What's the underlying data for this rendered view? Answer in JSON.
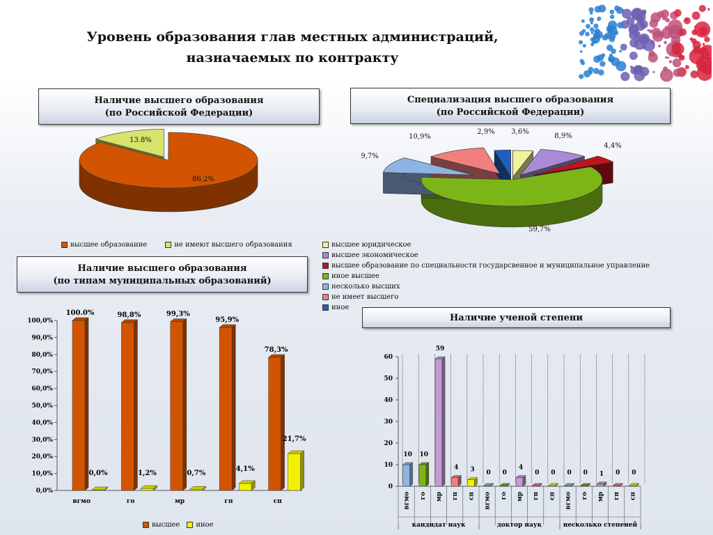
{
  "header": {
    "title_line1": "Уровень образования глав местных администраций,",
    "title_line2": "назначаемых по контракту"
  },
  "colors": {
    "orange": "#d35400",
    "yellow_green": "#d7e36a",
    "yellow": "#f2f200",
    "green": "#7cb518",
    "purple": "#a88bd6",
    "red": "#c0141b",
    "light_blue": "#8eb4e3",
    "salmon": "#f08080",
    "blue": "#1f5fbf"
  },
  "panels": {
    "higher_ed": {
      "line1": "Наличие высшего образования",
      "line2": "(по Российской Федерации)"
    },
    "specialization": {
      "line1": "Специализация высшего образования",
      "line2": "(по Российской Федерации)"
    },
    "by_type": {
      "line1": "Наличие высшего образования",
      "line2": "(по типам муниципальных образований)"
    },
    "degree": {
      "line1": "Наличие ученой степени"
    }
  },
  "chart_data": [
    {
      "type": "pie",
      "slices": [
        {
          "label": "высшее образование",
          "value": 86.2,
          "display": "86,2%",
          "color": "#d35400"
        },
        {
          "label": "не имеют высшего образования",
          "value": 13.8,
          "display": "13.8%",
          "color": "#d7e36a"
        }
      ]
    },
    {
      "type": "pie",
      "slices": [
        {
          "label": "высшее юридическое",
          "value": 3.6,
          "display": "3,6%",
          "color": "#f2f29a"
        },
        {
          "label": "высшее экономическое",
          "value": 8.9,
          "display": "8,9%",
          "color": "#a88bd6"
        },
        {
          "label": "высшее образование по специальности государсвенное и муниципальное управление",
          "value": 4.4,
          "display": "4,4%",
          "color": "#c0141b"
        },
        {
          "label": "иное высшее",
          "value": 59.7,
          "display": "59,7%",
          "color": "#7cb518"
        },
        {
          "label": "несколько высших",
          "value": 9.7,
          "display": "9,7%",
          "color": "#8eb4e3"
        },
        {
          "label": "не имеет высшего",
          "value": 10.9,
          "display": "10,9%",
          "color": "#f08080"
        },
        {
          "label": "иное",
          "value": 2.9,
          "display": "2,9%",
          "color": "#1f5fbf"
        }
      ]
    },
    {
      "type": "bar",
      "categories": [
        "вгмо",
        "го",
        "мр",
        "гп",
        "сп"
      ],
      "series": [
        {
          "name": "высшее",
          "values": [
            100.0,
            98.8,
            99.3,
            95.9,
            78.3
          ],
          "labels": [
            "100.0%",
            "98,8%",
            "99,3%",
            "95,9%",
            "78,3%"
          ],
          "color": "#d35400"
        },
        {
          "name": "иное",
          "values": [
            0.0,
            1.2,
            0.7,
            4.1,
            21.7
          ],
          "labels": [
            "0,0%",
            "1,2%",
            "0,7%",
            "4,1%",
            "21,7%"
          ],
          "color": "#f2f200"
        }
      ],
      "ylim": [
        0,
        100
      ],
      "yticks": [
        "0,0%",
        "10,0%",
        "20,0%",
        "30,0%",
        "40,0%",
        "50,0%",
        "60,0%",
        "70,0%",
        "80,0%",
        "90,0%",
        "100,0%"
      ]
    },
    {
      "type": "bar",
      "groups": [
        "кандидат наук",
        "доктор наук",
        "несколько степеней"
      ],
      "categories": [
        "вгмо",
        "го",
        "мр",
        "гп",
        "сп",
        "вгмо",
        "го",
        "мр",
        "гп",
        "сп",
        "вгмо",
        "го",
        "мр",
        "гп",
        "сп"
      ],
      "values": [
        10,
        10,
        59,
        4,
        3,
        0,
        0,
        4,
        0,
        0,
        0,
        0,
        1,
        0,
        0
      ],
      "colors": [
        "#8eb4e3",
        "#7cb518",
        "#c39bd3",
        "#f08080",
        "#f2f200",
        "#8eb4e3",
        "#7cb518",
        "#c39bd3",
        "#f08080",
        "#f2f200",
        "#8eb4e3",
        "#7cb518",
        "#c39bd3",
        "#f08080",
        "#f2f200"
      ],
      "ylim": [
        0,
        60
      ],
      "yticks": [
        "0",
        "10",
        "20",
        "30",
        "40",
        "50",
        "60"
      ]
    }
  ]
}
